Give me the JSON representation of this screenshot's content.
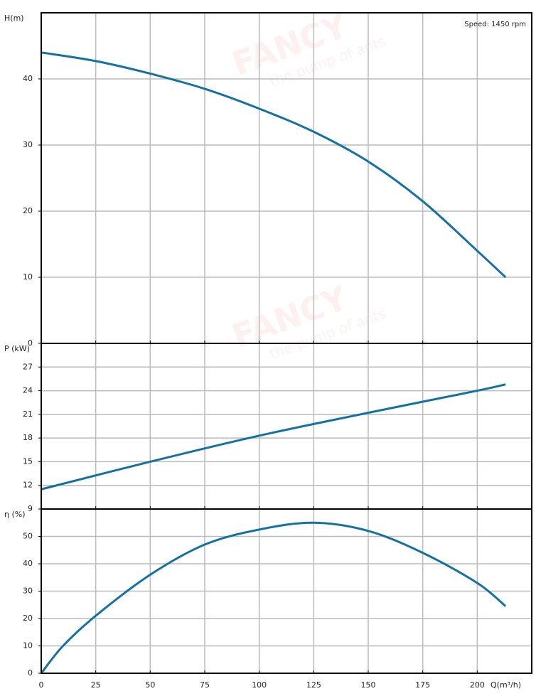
{
  "chart_data": [
    {
      "type": "line",
      "ylabel": "H(m)",
      "annotation": "Speed: 1450 rpm",
      "watermark": [
        "FANCY",
        "the pump of ants"
      ],
      "x": [
        0,
        25,
        50,
        75,
        100,
        125,
        150,
        175,
        200,
        213
      ],
      "series": [
        {
          "name": "H",
          "color": "#1670a0",
          "values": [
            44,
            42.7,
            40.8,
            38.5,
            35.5,
            32,
            27.5,
            21.5,
            14,
            10
          ]
        }
      ],
      "xlim": [
        0,
        225
      ],
      "xticks": [
        0,
        25,
        50,
        75,
        100,
        125,
        150,
        175,
        200
      ],
      "ylim": [
        0,
        50
      ],
      "yticks": [
        0,
        10,
        20,
        30,
        40
      ],
      "grid": true
    },
    {
      "type": "line",
      "ylabel": "P (kW)",
      "x": [
        0,
        50,
        100,
        150,
        200,
        213
      ],
      "series": [
        {
          "name": "P",
          "color": "#1670a0",
          "values": [
            11.5,
            15,
            18.3,
            21.2,
            24,
            24.8
          ]
        }
      ],
      "xlim": [
        0,
        225
      ],
      "xticks": [
        0,
        25,
        50,
        75,
        100,
        125,
        150,
        175,
        200
      ],
      "ylim": [
        9,
        30
      ],
      "yticks": [
        9,
        12,
        15,
        18,
        21,
        24,
        27
      ],
      "grid": true
    },
    {
      "type": "line",
      "ylabel": "η (%)",
      "xlabel": "Q(m³/h)",
      "x": [
        0,
        10,
        25,
        50,
        75,
        100,
        125,
        150,
        175,
        200,
        213
      ],
      "series": [
        {
          "name": "η",
          "color": "#1670a0",
          "values": [
            0,
            10,
            21,
            36,
            47,
            52.5,
            55,
            52,
            44,
            33,
            24.5
          ]
        }
      ],
      "xlim": [
        0,
        225
      ],
      "xticks": [
        0,
        25,
        50,
        75,
        100,
        125,
        150,
        175,
        200
      ],
      "ylim": [
        0,
        60
      ],
      "yticks": [
        0,
        10,
        20,
        30,
        40,
        50
      ],
      "grid": true
    }
  ]
}
